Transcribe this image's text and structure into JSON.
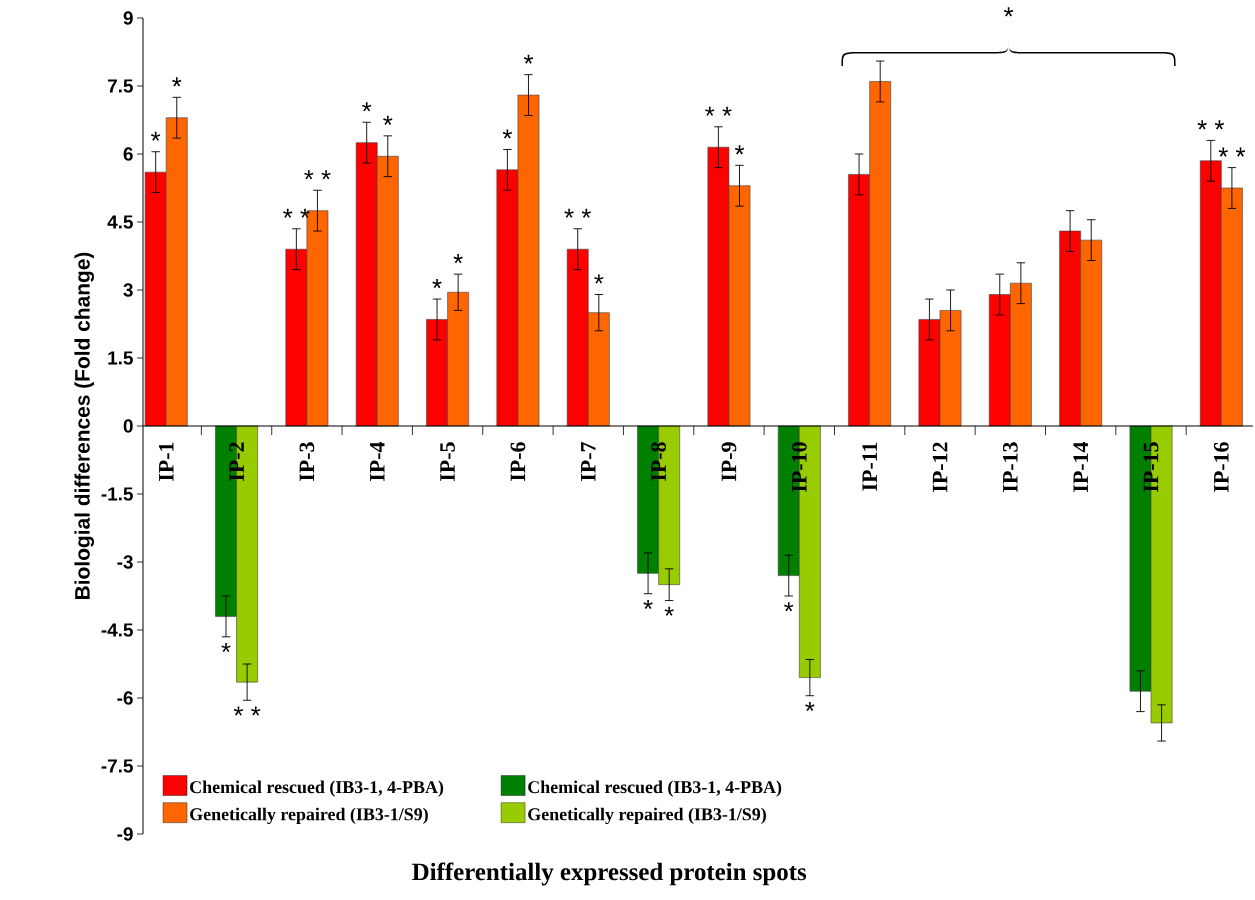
{
  "chart_data": {
    "type": "bar",
    "xlabel": "Differentially expressed protein spots",
    "ylabel": "Biologial differences (Fold change)",
    "categories": [
      "IP-1",
      "IP-2",
      "IP-3",
      "IP-4",
      "IP-5",
      "IP-6",
      "IP-7",
      "IP-8",
      "IP-9",
      "IP-10",
      "IP-11",
      "IP-12",
      "IP-13",
      "IP-14",
      "IP-15",
      "IP-16"
    ],
    "series": [
      {
        "name": "Chemical rescued (IB3-1, 4-PBA)",
        "color": "#ff0000",
        "values": [
          5.6,
          null,
          3.9,
          6.25,
          2.35,
          5.65,
          3.9,
          null,
          6.15,
          null,
          5.55,
          2.35,
          2.9,
          4.3,
          null,
          5.85
        ],
        "errors": [
          0.45,
          null,
          0.45,
          0.45,
          0.45,
          0.45,
          0.45,
          null,
          0.45,
          null,
          0.45,
          0.45,
          0.45,
          0.45,
          null,
          0.45
        ]
      },
      {
        "name": "Genetically repaired (IB3-1/S9)",
        "color": "#ff6600",
        "values": [
          6.8,
          null,
          4.75,
          5.95,
          2.95,
          7.3,
          2.5,
          null,
          5.3,
          null,
          7.6,
          2.55,
          3.15,
          4.1,
          null,
          5.25
        ],
        "errors": [
          0.45,
          null,
          0.45,
          0.45,
          0.4,
          0.45,
          0.4,
          null,
          0.45,
          null,
          0.45,
          0.45,
          0.45,
          0.45,
          null,
          0.45
        ]
      },
      {
        "name": "Chemical rescued (IB3-1, 4-PBA)",
        "color": "#008000",
        "values": [
          null,
          -4.2,
          null,
          null,
          null,
          null,
          null,
          -3.25,
          null,
          -3.3,
          null,
          null,
          null,
          null,
          -5.85,
          null
        ],
        "errors": [
          null,
          0.45,
          null,
          null,
          null,
          null,
          null,
          0.45,
          null,
          0.45,
          null,
          null,
          null,
          null,
          0.45,
          null
        ]
      },
      {
        "name": "Genetically repaired (IB3-1/S9)",
        "color": "#99cc00",
        "values": [
          null,
          -5.65,
          null,
          null,
          null,
          null,
          null,
          -3.5,
          null,
          -5.55,
          null,
          null,
          null,
          null,
          -6.55,
          null
        ],
        "errors": [
          null,
          0.4,
          null,
          null,
          null,
          null,
          null,
          0.35,
          null,
          0.4,
          null,
          null,
          null,
          null,
          0.4,
          null
        ]
      }
    ],
    "ylim": [
      -9,
      9
    ],
    "yticks": [
      -9,
      -7.5,
      -6,
      -4.5,
      -3,
      -1.5,
      0,
      1.5,
      3,
      4.5,
      6,
      7.5,
      9
    ],
    "legend": "bottom",
    "annotations": [
      {
        "text": "*",
        "x": "IP-1",
        "y": 5.6
      },
      {
        "text": "*",
        "x": "IP-1",
        "y": 6.8
      },
      {
        "text": "*",
        "x": "IP-2",
        "y": -4.2
      },
      {
        "text": "* *",
        "x": "IP-2",
        "y": -5.65
      },
      {
        "text": "* *",
        "x": "IP-3",
        "y": 3.9
      },
      {
        "text": "* *",
        "x": "IP-3",
        "y": 4.75
      },
      {
        "text": "*",
        "x": "IP-4",
        "y": 6.25
      },
      {
        "text": "*",
        "x": "IP-4",
        "y": 5.95
      },
      {
        "text": "*",
        "x": "IP-5",
        "y": 2.35
      },
      {
        "text": "*",
        "x": "IP-5",
        "y": 2.95
      },
      {
        "text": "*",
        "x": "IP-6",
        "y": 5.65
      },
      {
        "text": "*",
        "x": "IP-6",
        "y": 7.3
      },
      {
        "text": "* *",
        "x": "IP-7",
        "y": 3.9
      },
      {
        "text": "*",
        "x": "IP-7",
        "y": 2.5
      },
      {
        "text": "*",
        "x": "IP-8",
        "y": -3.25
      },
      {
        "text": "*",
        "x": "IP-8",
        "y": -3.5
      },
      {
        "text": "* *",
        "x": "IP-9",
        "y": 6.15
      },
      {
        "text": "*",
        "x": "IP-9",
        "y": 5.3
      },
      {
        "text": "*",
        "x": "IP-10",
        "y": -3.3
      },
      {
        "text": "*",
        "x": "IP-10",
        "y": -5.55
      },
      "*",
      {
        "text": "* *",
        "x": "IP-16",
        "y": 5.85
      },
      {
        "text": "* *",
        "x": "IP-16",
        "y": 5.25
      }
    ]
  }
}
